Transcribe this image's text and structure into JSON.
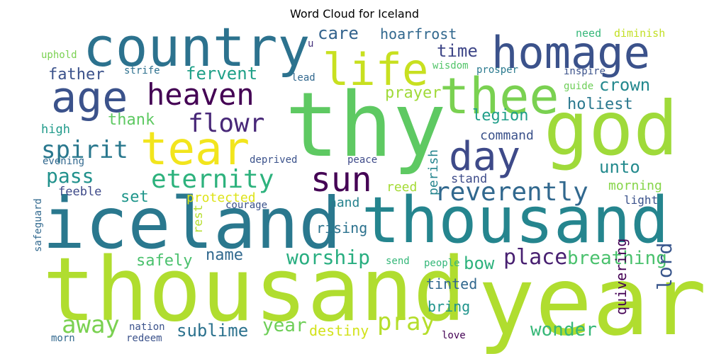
{
  "title": "Word Cloud for Iceland",
  "words": [
    {
      "text": "thousand",
      "color": "#b0dd2f"
    },
    {
      "text": "year",
      "color": "#b0dd2f"
    },
    {
      "text": "thy",
      "color": "#5ec962"
    },
    {
      "text": "god",
      "color": "#9fda3a"
    },
    {
      "text": "iceland",
      "color": "#2a788e"
    },
    {
      "text": "thousand",
      "color": "#25858e"
    },
    {
      "text": "country",
      "color": "#2c728e"
    },
    {
      "text": "homage",
      "color": "#3b528b"
    },
    {
      "text": "thee",
      "color": "#7ad151"
    },
    {
      "text": "life",
      "color": "#c8e020"
    },
    {
      "text": "age",
      "color": "#3b528b"
    },
    {
      "text": "heaven",
      "color": "#440154"
    },
    {
      "text": "tear",
      "color": "#f2e51d"
    },
    {
      "text": "day",
      "color": "#3e4a89"
    },
    {
      "text": "sun",
      "color": "#440154"
    },
    {
      "text": "eternity",
      "color": "#2db27d"
    },
    {
      "text": "reverently",
      "color": "#31688e"
    },
    {
      "text": "flowr",
      "color": "#482878"
    },
    {
      "text": "spirit",
      "color": "#2a788e"
    },
    {
      "text": "pass",
      "color": "#21918c"
    },
    {
      "text": "pray",
      "color": "#b5de2b"
    },
    {
      "text": "away",
      "color": "#7ad151"
    },
    {
      "text": "worship",
      "color": "#28ae80"
    },
    {
      "text": "place",
      "color": "#482071"
    },
    {
      "text": "breathing",
      "color": "#4ac16d"
    },
    {
      "text": "wonder",
      "color": "#37b878"
    },
    {
      "text": "lord",
      "color": "#39568c"
    },
    {
      "text": "sublime",
      "color": "#2c728e"
    },
    {
      "text": "year",
      "color": "#6ece58"
    },
    {
      "text": "fervent",
      "color": "#1fa088"
    },
    {
      "text": "care",
      "color": "#33638d"
    },
    {
      "text": "hoarfrost",
      "color": "#31688e"
    },
    {
      "text": "time",
      "color": "#3f4788"
    },
    {
      "text": "father",
      "color": "#3b528b"
    },
    {
      "text": "prayer",
      "color": "#a0da39"
    },
    {
      "text": "crown",
      "color": "#23888e"
    },
    {
      "text": "holiest",
      "color": "#2a788e"
    },
    {
      "text": "legion",
      "color": "#1f9e89"
    },
    {
      "text": "thank",
      "color": "#5ec962"
    },
    {
      "text": "unto",
      "color": "#238a8d"
    },
    {
      "text": "set",
      "color": "#1f968b"
    },
    {
      "text": "name",
      "color": "#31688e"
    },
    {
      "text": "safely",
      "color": "#4ac16d"
    },
    {
      "text": "bow",
      "color": "#2db27d"
    },
    {
      "text": "destiny",
      "color": "#d2e21b"
    },
    {
      "text": "quivering",
      "color": "#440154"
    },
    {
      "text": "command",
      "color": "#3b528b"
    },
    {
      "text": "protected",
      "color": "#dde318"
    },
    {
      "text": "rising",
      "color": "#2c728e"
    },
    {
      "text": "perish",
      "color": "#25858e"
    },
    {
      "text": "tinted",
      "color": "#31688e"
    },
    {
      "text": "bring",
      "color": "#1f948c"
    },
    {
      "text": "morning",
      "color": "#86d549"
    },
    {
      "text": "reed",
      "color": "#a5db36"
    },
    {
      "text": "hand",
      "color": "#26828e"
    },
    {
      "text": "feeble",
      "color": "#3e4a89"
    },
    {
      "text": "high",
      "color": "#1f9a8a"
    },
    {
      "text": "rest",
      "color": "#b5de2b"
    },
    {
      "text": "stand",
      "color": "#3e4c8a"
    },
    {
      "text": "light",
      "color": "#3b528b"
    },
    {
      "text": "need",
      "color": "#35b779"
    },
    {
      "text": "diminish",
      "color": "#c2df23"
    },
    {
      "text": "uphold",
      "color": "#7ad151"
    },
    {
      "text": "u",
      "color": "#46327e"
    },
    {
      "text": "wisdom",
      "color": "#52c569"
    },
    {
      "text": "strife",
      "color": "#2d708e"
    },
    {
      "text": "lead",
      "color": "#31688e"
    },
    {
      "text": "prosper",
      "color": "#29798e"
    },
    {
      "text": "inspire",
      "color": "#3b528b"
    },
    {
      "text": "guide",
      "color": "#6ece58"
    },
    {
      "text": "deprived",
      "color": "#3b528b"
    },
    {
      "text": "peace",
      "color": "#3e4a89"
    },
    {
      "text": "evening",
      "color": "#31688e"
    },
    {
      "text": "courage",
      "color": "#3b528b"
    },
    {
      "text": "safeguard",
      "color": "#31688e"
    },
    {
      "text": "send",
      "color": "#35b779"
    },
    {
      "text": "people",
      "color": "#35b779"
    },
    {
      "text": "nation",
      "color": "#3b528b"
    },
    {
      "text": "redeem",
      "color": "#3b528b"
    },
    {
      "text": "morn",
      "color": "#31688e"
    },
    {
      "text": "love",
      "color": "#440154"
    }
  ]
}
